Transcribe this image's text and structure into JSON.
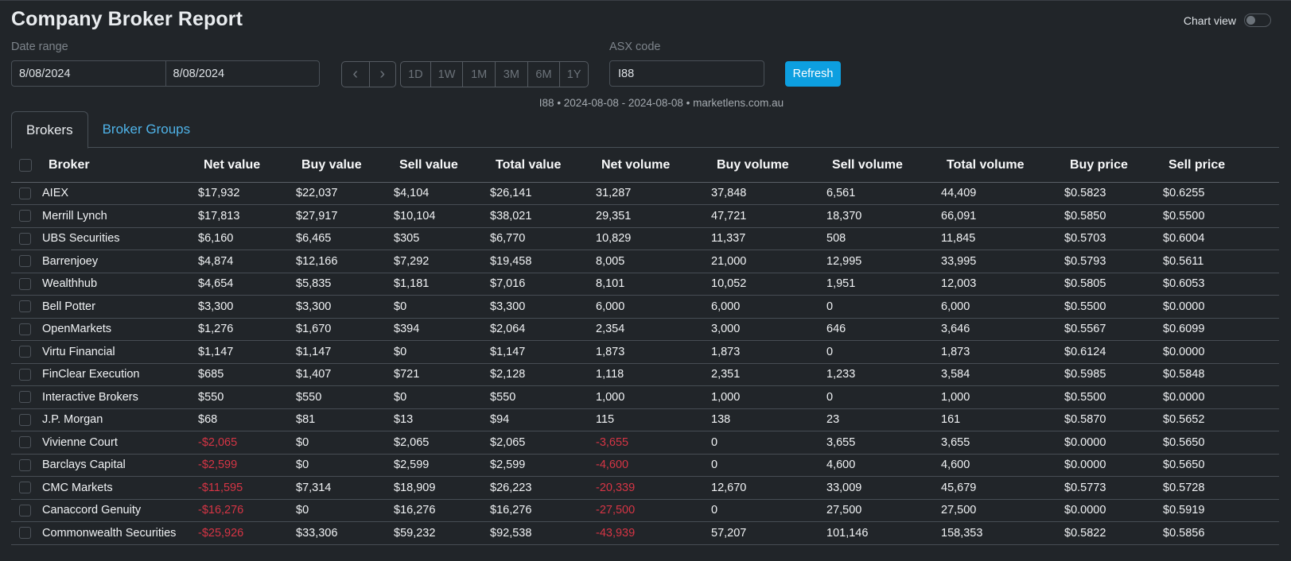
{
  "header": {
    "title": "Company Broker Report",
    "chart_view_label": "Chart view",
    "chart_view_enabled": false
  },
  "filters": {
    "date_range_label": "Date range",
    "date_from": "8/08/2024",
    "date_to": "8/08/2024",
    "nav": {
      "prev_icon": "chevron-left-icon",
      "prev_glyph": "‹",
      "next_icon": "chevron-right-icon",
      "next_glyph": "›"
    },
    "periods": [
      "1D",
      "1W",
      "1M",
      "3M",
      "6M",
      "1Y"
    ],
    "asx_code_label": "ASX code",
    "asx_code_value": "I88",
    "refresh_label": "Refresh"
  },
  "summary_line": "I88 • 2024-08-08 - 2024-08-08 • marketlens.com.au",
  "tabs": [
    {
      "label": "Brokers",
      "active": true
    },
    {
      "label": "Broker Groups",
      "active": false
    }
  ],
  "colors": {
    "background": "#212529",
    "accent": "#0d9fe0",
    "link": "#4fb3e8",
    "negative": "#d63545"
  },
  "table": {
    "columns": [
      "Broker",
      "Net value",
      "Buy value",
      "Sell value",
      "Total value",
      "Net volume",
      "Buy volume",
      "Sell volume",
      "Total volume",
      "Buy price",
      "Sell price"
    ],
    "rows": [
      [
        "AIEX",
        "$17,932",
        "$22,037",
        "$4,104",
        "$26,141",
        "31,287",
        "37,848",
        "6,561",
        "44,409",
        "$0.5823",
        "$0.6255"
      ],
      [
        "Merrill Lynch",
        "$17,813",
        "$27,917",
        "$10,104",
        "$38,021",
        "29,351",
        "47,721",
        "18,370",
        "66,091",
        "$0.5850",
        "$0.5500"
      ],
      [
        "UBS Securities",
        "$6,160",
        "$6,465",
        "$305",
        "$6,770",
        "10,829",
        "11,337",
        "508",
        "11,845",
        "$0.5703",
        "$0.6004"
      ],
      [
        "Barrenjoey",
        "$4,874",
        "$12,166",
        "$7,292",
        "$19,458",
        "8,005",
        "21,000",
        "12,995",
        "33,995",
        "$0.5793",
        "$0.5611"
      ],
      [
        "Wealthhub",
        "$4,654",
        "$5,835",
        "$1,181",
        "$7,016",
        "8,101",
        "10,052",
        "1,951",
        "12,003",
        "$0.5805",
        "$0.6053"
      ],
      [
        "Bell Potter",
        "$3,300",
        "$3,300",
        "$0",
        "$3,300",
        "6,000",
        "6,000",
        "0",
        "6,000",
        "$0.5500",
        "$0.0000"
      ],
      [
        "OpenMarkets",
        "$1,276",
        "$1,670",
        "$394",
        "$2,064",
        "2,354",
        "3,000",
        "646",
        "3,646",
        "$0.5567",
        "$0.6099"
      ],
      [
        "Virtu Financial",
        "$1,147",
        "$1,147",
        "$0",
        "$1,147",
        "1,873",
        "1,873",
        "0",
        "1,873",
        "$0.6124",
        "$0.0000"
      ],
      [
        "FinClear Execution",
        "$685",
        "$1,407",
        "$721",
        "$2,128",
        "1,118",
        "2,351",
        "1,233",
        "3,584",
        "$0.5985",
        "$0.5848"
      ],
      [
        "Interactive Brokers",
        "$550",
        "$550",
        "$0",
        "$550",
        "1,000",
        "1,000",
        "0",
        "1,000",
        "$0.5500",
        "$0.0000"
      ],
      [
        "J.P. Morgan",
        "$68",
        "$81",
        "$13",
        "$94",
        "115",
        "138",
        "23",
        "161",
        "$0.5870",
        "$0.5652"
      ],
      [
        "Vivienne Court",
        "-$2,065",
        "$0",
        "$2,065",
        "$2,065",
        "-3,655",
        "0",
        "3,655",
        "3,655",
        "$0.0000",
        "$0.5650"
      ],
      [
        "Barclays Capital",
        "-$2,599",
        "$0",
        "$2,599",
        "$2,599",
        "-4,600",
        "0",
        "4,600",
        "4,600",
        "$0.0000",
        "$0.5650"
      ],
      [
        "CMC Markets",
        "-$11,595",
        "$7,314",
        "$18,909",
        "$26,223",
        "-20,339",
        "12,670",
        "33,009",
        "45,679",
        "$0.5773",
        "$0.5728"
      ],
      [
        "Canaccord Genuity",
        "-$16,276",
        "$0",
        "$16,276",
        "$16,276",
        "-27,500",
        "0",
        "27,500",
        "27,500",
        "$0.0000",
        "$0.5919"
      ],
      [
        "Commonwealth Securities",
        "-$25,926",
        "$33,306",
        "$59,232",
        "$92,538",
        "-43,939",
        "57,207",
        "101,146",
        "158,353",
        "$0.5822",
        "$0.5856"
      ]
    ]
  }
}
